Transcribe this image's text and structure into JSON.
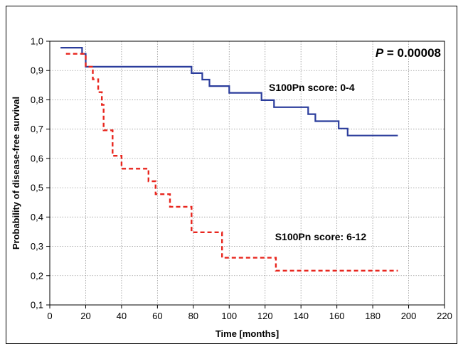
{
  "chart_data": {
    "type": "line",
    "title": "",
    "xlabel": "Time [months]",
    "ylabel": "Probability of disease-free survival",
    "xlim": [
      0,
      220
    ],
    "ylim": [
      0.1,
      1.0
    ],
    "x_ticks": [
      "0",
      "20",
      "40",
      "60",
      "80",
      "100",
      "120",
      "140",
      "160",
      "180",
      "200",
      "220"
    ],
    "y_ticks": [
      "0,1",
      "0,2",
      "0,3",
      "0,4",
      "0,5",
      "0,6",
      "0,7",
      "0,8",
      "0,9",
      "1,0"
    ],
    "grid": true,
    "legend": "none",
    "series": [
      {
        "name": "S100Pn score: 0-4",
        "color": "#2b3d9c",
        "style": "solid",
        "steps": [
          [
            6,
            0.978
          ],
          [
            18,
            0.978
          ],
          [
            18,
            0.957
          ],
          [
            20,
            0.957
          ],
          [
            20,
            0.913
          ],
          [
            79,
            0.913
          ],
          [
            79,
            0.891
          ],
          [
            85,
            0.891
          ],
          [
            85,
            0.869
          ],
          [
            89,
            0.869
          ],
          [
            89,
            0.847
          ],
          [
            100,
            0.847
          ],
          [
            100,
            0.824
          ],
          [
            118,
            0.824
          ],
          [
            118,
            0.799
          ],
          [
            125,
            0.799
          ],
          [
            125,
            0.775
          ],
          [
            144,
            0.775
          ],
          [
            144,
            0.751
          ],
          [
            148,
            0.751
          ],
          [
            148,
            0.727
          ],
          [
            156,
            0.727
          ],
          [
            156,
            0.727
          ],
          [
            161,
            0.727
          ],
          [
            161,
            0.702
          ],
          [
            166,
            0.702
          ],
          [
            166,
            0.678
          ],
          [
            194,
            0.678
          ]
        ]
      },
      {
        "name": "S100Pn score: 6-12",
        "color": "#e8261e",
        "style": "dashed",
        "steps": [
          [
            9,
            0.957
          ],
          [
            20,
            0.957
          ],
          [
            20,
            0.913
          ],
          [
            24,
            0.913
          ],
          [
            24,
            0.87
          ],
          [
            27,
            0.87
          ],
          [
            27,
            0.826
          ],
          [
            29,
            0.826
          ],
          [
            29,
            0.783
          ],
          [
            30,
            0.783
          ],
          [
            30,
            0.696
          ],
          [
            35,
            0.696
          ],
          [
            35,
            0.609
          ],
          [
            40,
            0.609
          ],
          [
            40,
            0.565
          ],
          [
            55,
            0.565
          ],
          [
            55,
            0.522
          ],
          [
            59,
            0.522
          ],
          [
            59,
            0.478
          ],
          [
            67,
            0.478
          ],
          [
            67,
            0.435
          ],
          [
            79,
            0.435
          ],
          [
            79,
            0.348
          ],
          [
            96,
            0.348
          ],
          [
            96,
            0.261
          ],
          [
            126,
            0.261
          ],
          [
            126,
            0.217
          ],
          [
            194,
            0.217
          ]
        ]
      }
    ],
    "annotations": [
      {
        "text": "S100Pn score: 0-4",
        "x": 146,
        "y": 0.842
      },
      {
        "text": "S100Pn score: 6-12",
        "x": 151,
        "y": 0.333
      }
    ],
    "p_value": {
      "prefix": "P",
      "text": " = 0.00008"
    }
  }
}
